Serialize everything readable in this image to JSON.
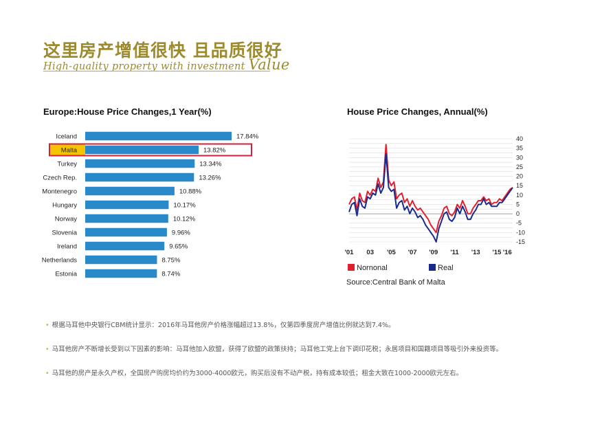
{
  "header": {
    "title_cn": "这里房产增值很快 且品质很好",
    "subtitle_main": "High-quality property with investment",
    "subtitle_big": "Value"
  },
  "notes": [
    "根据马耳他中央银行CBM统计显示：2016年马耳他房产价格涨幅超过13.8%，仅第四季度房产增值比例就达到7.4%。",
    "马耳他房产不断增长受到以下因素的影响：马耳他加入欧盟，获得了欧盟的政策扶持；马耳他工党上台下调印花税；永居项目和国籍项目等吸引外来投资等。",
    "马耳他的房产是永久产权，全国房产购房均价约为3000-4000欧元，购买后没有不动产税，持有成本较低；租金大致在1000-2000欧元左右。"
  ],
  "chart_data": [
    {
      "type": "bar",
      "orientation": "horizontal",
      "title": "Europe:House Price Changes,1 Year(%)",
      "categories": [
        "Iceland",
        "Malta",
        "Turkey",
        "Czech Rep.",
        "Montenegro",
        "Hungary",
        "Norway",
        "Slovenia",
        "Ireland",
        "Netherlands",
        "Estonia"
      ],
      "values": [
        17.84,
        13.82,
        13.34,
        13.26,
        10.88,
        10.17,
        10.12,
        9.96,
        9.65,
        8.75,
        8.74
      ],
      "value_labels": [
        "17.84%",
        "13.82%",
        "13.34%",
        "13.26%",
        "10.88%",
        "10.17%",
        "10.12%",
        "9.96%",
        "9.65%",
        "8.75%",
        "8.74%"
      ],
      "highlight": "Malta",
      "bar_color": "#2a8ac9",
      "highlight_label_bg": "#f5c400",
      "highlight_border": "#d0203a"
    },
    {
      "type": "line",
      "title": "House Price Changes, Annual(%)",
      "ylim": [
        -15,
        40
      ],
      "yticks": [
        40,
        35,
        30,
        25,
        20,
        15,
        10,
        5,
        0,
        -5,
        -10,
        -15
      ],
      "xlim": [
        2001,
        2016.5
      ],
      "xticks": [
        2001,
        2003,
        2005,
        2007,
        2009,
        2011,
        2013,
        2015,
        2016
      ],
      "xtick_labels": [
        "'01",
        "03",
        "'05",
        "'07",
        "'09",
        "'11",
        "'13",
        "'15",
        "'16"
      ],
      "grid": true,
      "legend_position": "bottom-left",
      "source": "Source:Central Bank of Malta",
      "series": [
        {
          "name": "Nornonal",
          "color": "#e0202e",
          "x": [
            2001,
            2001.25,
            2001.5,
            2001.75,
            2002,
            2002.25,
            2002.5,
            2002.75,
            2003,
            2003.25,
            2003.5,
            2003.75,
            2004,
            2004.25,
            2004.5,
            2004.75,
            2005,
            2005.25,
            2005.5,
            2005.75,
            2006,
            2006.25,
            2006.5,
            2006.75,
            2007,
            2007.25,
            2007.5,
            2007.75,
            2008,
            2008.25,
            2008.5,
            2008.75,
            2009,
            2009.25,
            2009.5,
            2009.75,
            2010,
            2010.25,
            2010.5,
            2010.75,
            2011,
            2011.25,
            2011.5,
            2011.75,
            2012,
            2012.25,
            2012.5,
            2012.75,
            2013,
            2013.25,
            2013.5,
            2013.75,
            2014,
            2014.25,
            2014.5,
            2014.75,
            2015,
            2015.25,
            2015.5,
            2015.75,
            2016,
            2016.25,
            2016.5
          ],
          "values": [
            5,
            8,
            9,
            2,
            11,
            7,
            6,
            12,
            10,
            13,
            12,
            19,
            14,
            17,
            37,
            18,
            15,
            17,
            8,
            10,
            11,
            6,
            8,
            4,
            7,
            4,
            2,
            3,
            1,
            -1,
            -3,
            -6,
            -8,
            -10,
            -4,
            -1,
            3,
            4,
            0,
            -1,
            1,
            5,
            3,
            7,
            4,
            0,
            0,
            3,
            5,
            7,
            7,
            9,
            7,
            8,
            5,
            6,
            6,
            8,
            7,
            9,
            11,
            13,
            14
          ]
        },
        {
          "name": "Real",
          "color": "#1a2a8c",
          "x": [
            2001,
            2001.25,
            2001.5,
            2001.75,
            2002,
            2002.25,
            2002.5,
            2002.75,
            2003,
            2003.25,
            2003.5,
            2003.75,
            2004,
            2004.25,
            2004.5,
            2004.75,
            2005,
            2005.25,
            2005.5,
            2005.75,
            2006,
            2006.25,
            2006.5,
            2006.75,
            2007,
            2007.25,
            2007.5,
            2007.75,
            2008,
            2008.25,
            2008.5,
            2008.75,
            2009,
            2009.25,
            2009.5,
            2009.75,
            2010,
            2010.25,
            2010.5,
            2010.75,
            2011,
            2011.25,
            2011.5,
            2011.75,
            2012,
            2012.25,
            2012.5,
            2012.75,
            2013,
            2013.25,
            2013.5,
            2013.75,
            2014,
            2014.25,
            2014.5,
            2014.75,
            2015,
            2015.25,
            2015.5,
            2015.75,
            2016,
            2016.25,
            2016.5
          ],
          "values": [
            1,
            5,
            6,
            -1,
            8,
            4,
            3,
            9,
            8,
            11,
            10,
            16,
            11,
            14,
            32,
            14,
            12,
            13,
            3,
            6,
            7,
            2,
            4,
            0,
            3,
            1,
            -2,
            -1,
            -3,
            -6,
            -8,
            -10,
            -12,
            -15,
            -8,
            -4,
            0,
            1,
            -3,
            -4,
            -2,
            3,
            0,
            4,
            1,
            -3,
            -3,
            0,
            2,
            5,
            5,
            8,
            5,
            6,
            4,
            4,
            4,
            6,
            6,
            8,
            10,
            12,
            14
          ]
        }
      ]
    }
  ]
}
